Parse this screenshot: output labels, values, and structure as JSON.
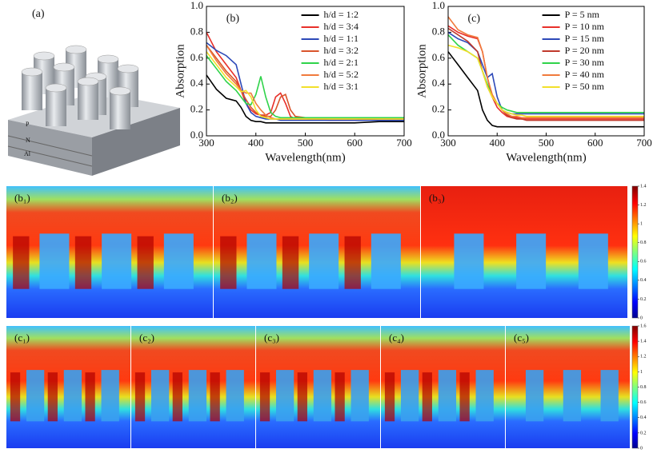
{
  "chart_data": [
    {
      "type": "line",
      "label": "(b)",
      "x_label": "Wavelength(nm)",
      "y_label": "Absorption",
      "x": [
        300,
        320,
        340,
        360,
        370,
        380,
        390,
        400,
        410,
        420,
        430,
        440,
        450,
        460,
        470,
        480,
        500,
        550,
        600,
        650,
        700
      ],
      "xlim": [
        300,
        700
      ],
      "xticks": [
        300,
        400,
        500,
        600,
        700
      ],
      "ylim": [
        0,
        1
      ],
      "yticks": [
        {
          "value": 0,
          "label": "0.0"
        },
        {
          "value": 0.2,
          "label": "0.2"
        },
        {
          "value": 0.4,
          "label": "0.4"
        },
        {
          "value": 0.6,
          "label": "0.6"
        },
        {
          "value": 0.8,
          "label": "0.8"
        },
        {
          "value": 1,
          "label": "1.0"
        }
      ],
      "series": [
        {
          "name": "h/d = 1:2",
          "color": "#000000",
          "values": [
            0.47,
            0.36,
            0.29,
            0.27,
            0.22,
            0.15,
            0.12,
            0.11,
            0.11,
            0.1,
            0.1,
            0.1,
            0.1,
            0.1,
            0.1,
            0.1,
            0.1,
            0.1,
            0.1,
            0.11,
            0.11
          ]
        },
        {
          "name": "h/d = 3:4",
          "color": "#e8302a",
          "values": [
            0.8,
            0.65,
            0.55,
            0.45,
            0.35,
            0.25,
            0.2,
            0.17,
            0.16,
            0.16,
            0.18,
            0.3,
            0.33,
            0.25,
            0.15,
            0.13,
            0.13,
            0.12,
            0.12,
            0.13,
            0.13
          ]
        },
        {
          "name": "h/d = 1:1",
          "color": "#2d49b8",
          "values": [
            0.72,
            0.66,
            0.62,
            0.55,
            0.4,
            0.25,
            0.18,
            0.15,
            0.14,
            0.13,
            0.13,
            0.13,
            0.12,
            0.12,
            0.12,
            0.12,
            0.12,
            0.12,
            0.12,
            0.12,
            0.12
          ]
        },
        {
          "name": "h/d = 3:2",
          "color": "#d9542b",
          "values": [
            0.7,
            0.6,
            0.5,
            0.42,
            0.35,
            0.28,
            0.22,
            0.18,
            0.16,
            0.15,
            0.15,
            0.2,
            0.3,
            0.32,
            0.2,
            0.15,
            0.14,
            0.14,
            0.14,
            0.14,
            0.14
          ]
        },
        {
          "name": "h/d = 2:1",
          "color": "#2fd34a",
          "values": [
            0.62,
            0.52,
            0.42,
            0.35,
            0.3,
            0.25,
            0.24,
            0.32,
            0.46,
            0.3,
            0.18,
            0.15,
            0.14,
            0.14,
            0.14,
            0.14,
            0.14,
            0.14,
            0.14,
            0.14,
            0.14
          ]
        },
        {
          "name": "h/d = 5:2",
          "color": "#f07a3c",
          "values": [
            0.7,
            0.58,
            0.48,
            0.4,
            0.35,
            0.33,
            0.33,
            0.25,
            0.2,
            0.16,
            0.14,
            0.13,
            0.13,
            0.13,
            0.13,
            0.13,
            0.13,
            0.13,
            0.13,
            0.13,
            0.13
          ]
        },
        {
          "name": "h/d = 3:1",
          "color": "#f2e02a",
          "values": [
            0.65,
            0.55,
            0.45,
            0.38,
            0.34,
            0.35,
            0.3,
            0.2,
            0.15,
            0.14,
            0.13,
            0.13,
            0.13,
            0.13,
            0.13,
            0.13,
            0.13,
            0.13,
            0.13,
            0.13,
            0.13
          ]
        }
      ]
    },
    {
      "type": "line",
      "label": "(c)",
      "x_label": "Wavelength(nm)",
      "y_label": "Absorption",
      "x": [
        300,
        320,
        340,
        360,
        370,
        380,
        390,
        400,
        410,
        420,
        430,
        440,
        450,
        460,
        470,
        480,
        500,
        550,
        600,
        650,
        700
      ],
      "xlim": [
        300,
        700
      ],
      "xticks": [
        300,
        400,
        500,
        600,
        700
      ],
      "ylim": [
        0,
        1
      ],
      "yticks": [
        {
          "value": 0,
          "label": "0.0"
        },
        {
          "value": 0.2,
          "label": "0.2"
        },
        {
          "value": 0.4,
          "label": "0.4"
        },
        {
          "value": 0.6,
          "label": "0.6"
        },
        {
          "value": 0.8,
          "label": "0.8"
        },
        {
          "value": 1,
          "label": "1.0"
        }
      ],
      "series": [
        {
          "name": "P =  5  nm",
          "color": "#000000",
          "values": [
            0.65,
            0.55,
            0.45,
            0.35,
            0.2,
            0.12,
            0.08,
            0.07,
            0.07,
            0.07,
            0.07,
            0.07,
            0.07,
            0.07,
            0.07,
            0.07,
            0.07,
            0.07,
            0.07,
            0.07,
            0.07
          ]
        },
        {
          "name": "P = 10  nm",
          "color": "#e8302a",
          "values": [
            0.85,
            0.8,
            0.77,
            0.75,
            0.65,
            0.45,
            0.3,
            0.22,
            0.18,
            0.15,
            0.14,
            0.14,
            0.13,
            0.13,
            0.13,
            0.13,
            0.13,
            0.13,
            0.13,
            0.13,
            0.13
          ]
        },
        {
          "name": "P = 15  nm",
          "color": "#2d49b8",
          "values": [
            0.8,
            0.75,
            0.72,
            0.65,
            0.55,
            0.45,
            0.48,
            0.3,
            0.2,
            0.18,
            0.17,
            0.17,
            0.17,
            0.17,
            0.17,
            0.17,
            0.17,
            0.17,
            0.17,
            0.17,
            0.17
          ]
        },
        {
          "name": "P = 20  nm",
          "color": "#c0392b",
          "values": [
            0.83,
            0.78,
            0.73,
            0.65,
            0.5,
            0.38,
            0.3,
            0.25,
            0.2,
            0.16,
            0.14,
            0.13,
            0.13,
            0.12,
            0.12,
            0.12,
            0.12,
            0.12,
            0.12,
            0.12,
            0.12
          ]
        },
        {
          "name": "P = 30  nm",
          "color": "#2fd34a",
          "values": [
            0.78,
            0.7,
            0.65,
            0.6,
            0.5,
            0.4,
            0.3,
            0.25,
            0.22,
            0.2,
            0.19,
            0.18,
            0.18,
            0.18,
            0.18,
            0.18,
            0.18,
            0.18,
            0.18,
            0.18,
            0.18
          ]
        },
        {
          "name": "P = 40  nm",
          "color": "#f07a3c",
          "values": [
            0.92,
            0.82,
            0.78,
            0.76,
            0.65,
            0.45,
            0.32,
            0.25,
            0.2,
            0.17,
            0.15,
            0.15,
            0.14,
            0.14,
            0.14,
            0.14,
            0.14,
            0.14,
            0.14,
            0.14,
            0.14
          ]
        },
        {
          "name": "P = 50  nm",
          "color": "#f2e02a",
          "values": [
            0.7,
            0.68,
            0.65,
            0.6,
            0.5,
            0.38,
            0.3,
            0.25,
            0.2,
            0.18,
            0.17,
            0.16,
            0.16,
            0.15,
            0.15,
            0.15,
            0.15,
            0.15,
            0.15,
            0.15,
            0.15
          ]
        }
      ]
    },
    {
      "type": "colorbar",
      "ylim": [
        0,
        1.4
      ],
      "yticks": [
        0,
        0.2,
        0.4,
        0.6,
        0.8,
        1,
        1.2,
        1.4
      ]
    },
    {
      "type": "colorbar",
      "ylim": [
        0,
        1.6
      ],
      "yticks": [
        0,
        0.2,
        0.4,
        0.6,
        0.8,
        1,
        1.2,
        1.4,
        1.6
      ]
    }
  ],
  "schematic": {
    "label": "(a)",
    "layers": [
      "P",
      "N",
      "Al"
    ]
  },
  "field_maps": {
    "b": [
      "(b₁)",
      "(b₂)",
      "(b₃)"
    ],
    "c": [
      "(c₁)",
      "(c₂)",
      "(c₃)",
      "(c₄)",
      "(c₅)"
    ]
  }
}
